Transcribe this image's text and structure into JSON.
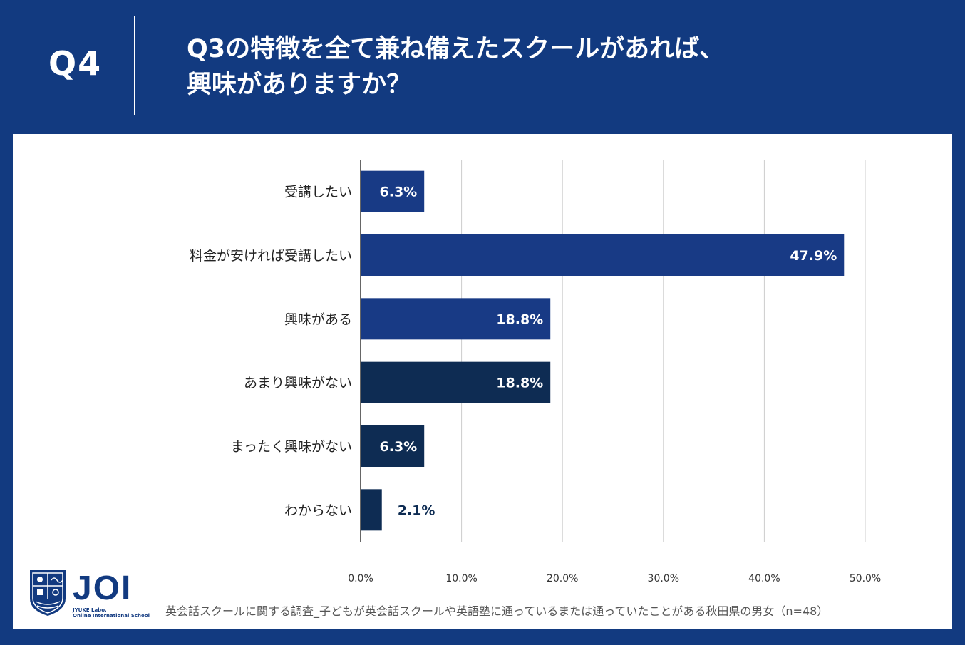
{
  "header": {
    "q_label": "Q4",
    "question_line1": "Q3の特徴を全て兼ね備えたスクールがあれば、",
    "question_line2": "興味がありますか？"
  },
  "logo": {
    "name": "JOI",
    "sub1": "JYUKE Labo.",
    "sub2": "Online International School"
  },
  "footnote": "英会話スクールに関する調査_子どもが英会話スクールや英語塾に通っているまたは通っていたことがある秋田県の男女（n=48）",
  "colors": {
    "header_bg": "#123a80",
    "bar_primary": "#183a85",
    "bar_secondary": "#0e2c53",
    "grid": "#cccccc"
  },
  "chart_data": {
    "type": "bar",
    "orientation": "horizontal",
    "categories": [
      "受講したい",
      "料金が安ければ受講したい",
      "興味がある",
      "あまり興味がない",
      "まったく興味がない",
      "わからない"
    ],
    "values": [
      6.3,
      47.9,
      18.8,
      18.8,
      6.3,
      2.1
    ],
    "value_labels": [
      "6.3%",
      "47.9%",
      "18.8%",
      "18.8%",
      "6.3%",
      "2.1%"
    ],
    "bar_colors": [
      "#183a85",
      "#183a85",
      "#183a85",
      "#0e2c53",
      "#0e2c53",
      "#0e2c53"
    ],
    "xlim": [
      0,
      50
    ],
    "xticks": [
      0,
      10,
      20,
      30,
      40,
      50
    ],
    "xtick_labels": [
      "0.0%",
      "10.0%",
      "20.0%",
      "30.0%",
      "40.0%",
      "50.0%"
    ],
    "grid": true,
    "title": "",
    "xlabel": "",
    "ylabel": ""
  }
}
